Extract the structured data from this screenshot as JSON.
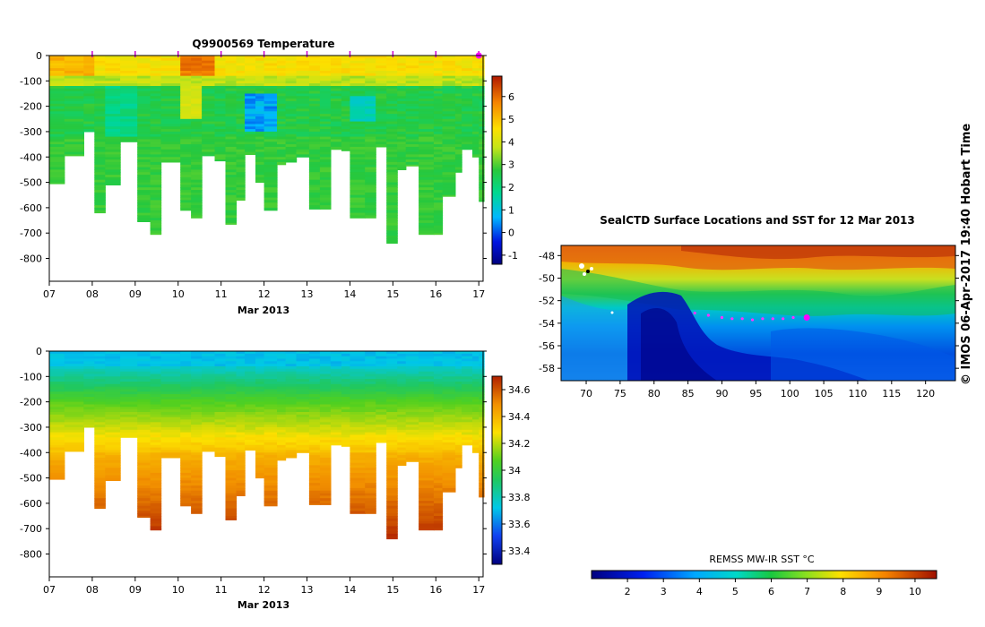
{
  "page": {
    "credit": "© IMOS 06-Apr-2017 19:40 Hobart Time"
  },
  "chart_data": [
    {
      "type": "heatmap",
      "title": "Q9900569  Temperature",
      "xlabel": "Mar 2013",
      "x_ticks": [
        "07",
        "08",
        "09",
        "10",
        "11",
        "12",
        "13",
        "14",
        "15",
        "16",
        "17"
      ],
      "y_ticks": [
        "0",
        "-100",
        "-200",
        "-300",
        "-400",
        "-500",
        "-600",
        "-700",
        "-800"
      ],
      "xlim": [
        7,
        17.1
      ],
      "ylim": [
        -890,
        0
      ],
      "colorbar": {
        "ticks": [
          "-1",
          "0",
          "1",
          "2",
          "3",
          "4",
          "5",
          "6"
        ],
        "range": [
          -1.4,
          6.9
        ]
      },
      "profile_markers_day": [
        8,
        9,
        10,
        11,
        12,
        13,
        14,
        15,
        16,
        17
      ],
      "profiles": [
        {
          "t": 7.0,
          "depth": 505
        },
        {
          "t": 7.35,
          "depth": 395
        },
        {
          "t": 7.8,
          "depth": 300
        },
        {
          "t": 8.05,
          "depth": 620
        },
        {
          "t": 8.3,
          "depth": 510
        },
        {
          "t": 8.65,
          "depth": 340
        },
        {
          "t": 9.05,
          "depth": 655
        },
        {
          "t": 9.35,
          "depth": 705
        },
        {
          "t": 9.6,
          "depth": 420
        },
        {
          "t": 10.05,
          "depth": 610
        },
        {
          "t": 10.3,
          "depth": 640
        },
        {
          "t": 10.55,
          "depth": 395
        },
        {
          "t": 10.85,
          "depth": 415
        },
        {
          "t": 11.1,
          "depth": 665
        },
        {
          "t": 11.35,
          "depth": 570
        },
        {
          "t": 11.55,
          "depth": 390
        },
        {
          "t": 11.8,
          "depth": 500
        },
        {
          "t": 12.0,
          "depth": 610
        },
        {
          "t": 12.3,
          "depth": 430
        },
        {
          "t": 12.5,
          "depth": 420
        },
        {
          "t": 12.75,
          "depth": 400
        },
        {
          "t": 13.05,
          "depth": 605
        },
        {
          "t": 13.3,
          "depth": 605
        },
        {
          "t": 13.55,
          "depth": 370
        },
        {
          "t": 13.8,
          "depth": 375
        },
        {
          "t": 14.0,
          "depth": 640
        },
        {
          "t": 14.35,
          "depth": 640
        },
        {
          "t": 14.6,
          "depth": 360
        },
        {
          "t": 14.85,
          "depth": 740
        },
        {
          "t": 15.1,
          "depth": 450
        },
        {
          "t": 15.3,
          "depth": 435
        },
        {
          "t": 15.6,
          "depth": 705
        },
        {
          "t": 15.95,
          "depth": 705
        },
        {
          "t": 16.15,
          "depth": 555
        },
        {
          "t": 16.45,
          "depth": 460
        },
        {
          "t": 16.6,
          "depth": 370
        },
        {
          "t": 16.85,
          "depth": 400
        },
        {
          "t": 17.0,
          "depth": 575
        }
      ]
    },
    {
      "type": "heatmap",
      "title": "",
      "xlabel": "Mar 2013",
      "x_ticks": [
        "07",
        "08",
        "09",
        "10",
        "11",
        "12",
        "13",
        "14",
        "15",
        "16",
        "17"
      ],
      "y_ticks": [
        "0",
        "-100",
        "-200",
        "-300",
        "-400",
        "-500",
        "-600",
        "-700",
        "-800"
      ],
      "xlim": [
        7,
        17.1
      ],
      "ylim": [
        -890,
        0
      ],
      "colorbar": {
        "ticks": [
          "33.4",
          "33.6",
          "33.8",
          "34",
          "34.2",
          "34.4",
          "34.6"
        ],
        "range": [
          33.3,
          34.7
        ]
      }
    },
    {
      "type": "heatmap",
      "title": "SealCTD Surface Locations and SST for 12 Mar 2013",
      "x_ticks": [
        "70",
        "75",
        "80",
        "85",
        "90",
        "95",
        "100",
        "105",
        "110",
        "115",
        "120"
      ],
      "y_ticks": [
        "-48",
        "-50",
        "-52",
        "-54",
        "-56",
        "-58"
      ],
      "xlim": [
        66.3,
        124.4
      ],
      "ylim": [
        -59.1,
        -47.1
      ],
      "colorbar": {
        "label": "REMSS MW-IR SST °C",
        "ticks": [
          "2",
          "3",
          "4",
          "5",
          "6",
          "7",
          "8",
          "9",
          "10"
        ],
        "range": [
          1.0,
          10.6
        ]
      },
      "track": [
        {
          "lon": 86,
          "lat": -53.1
        },
        {
          "lon": 88,
          "lat": -53.3
        },
        {
          "lon": 90,
          "lat": -53.5
        },
        {
          "lon": 91.5,
          "lat": -53.6
        },
        {
          "lon": 93,
          "lat": -53.6
        },
        {
          "lon": 94.5,
          "lat": -53.7
        },
        {
          "lon": 96,
          "lat": -53.6
        },
        {
          "lon": 97.5,
          "lat": -53.6
        },
        {
          "lon": 99,
          "lat": -53.6
        },
        {
          "lon": 100.5,
          "lat": -53.5
        },
        {
          "lon": 102.3,
          "lat": -53.5
        }
      ],
      "current_position": {
        "lon": 102.5,
        "lat": -53.5
      }
    }
  ]
}
